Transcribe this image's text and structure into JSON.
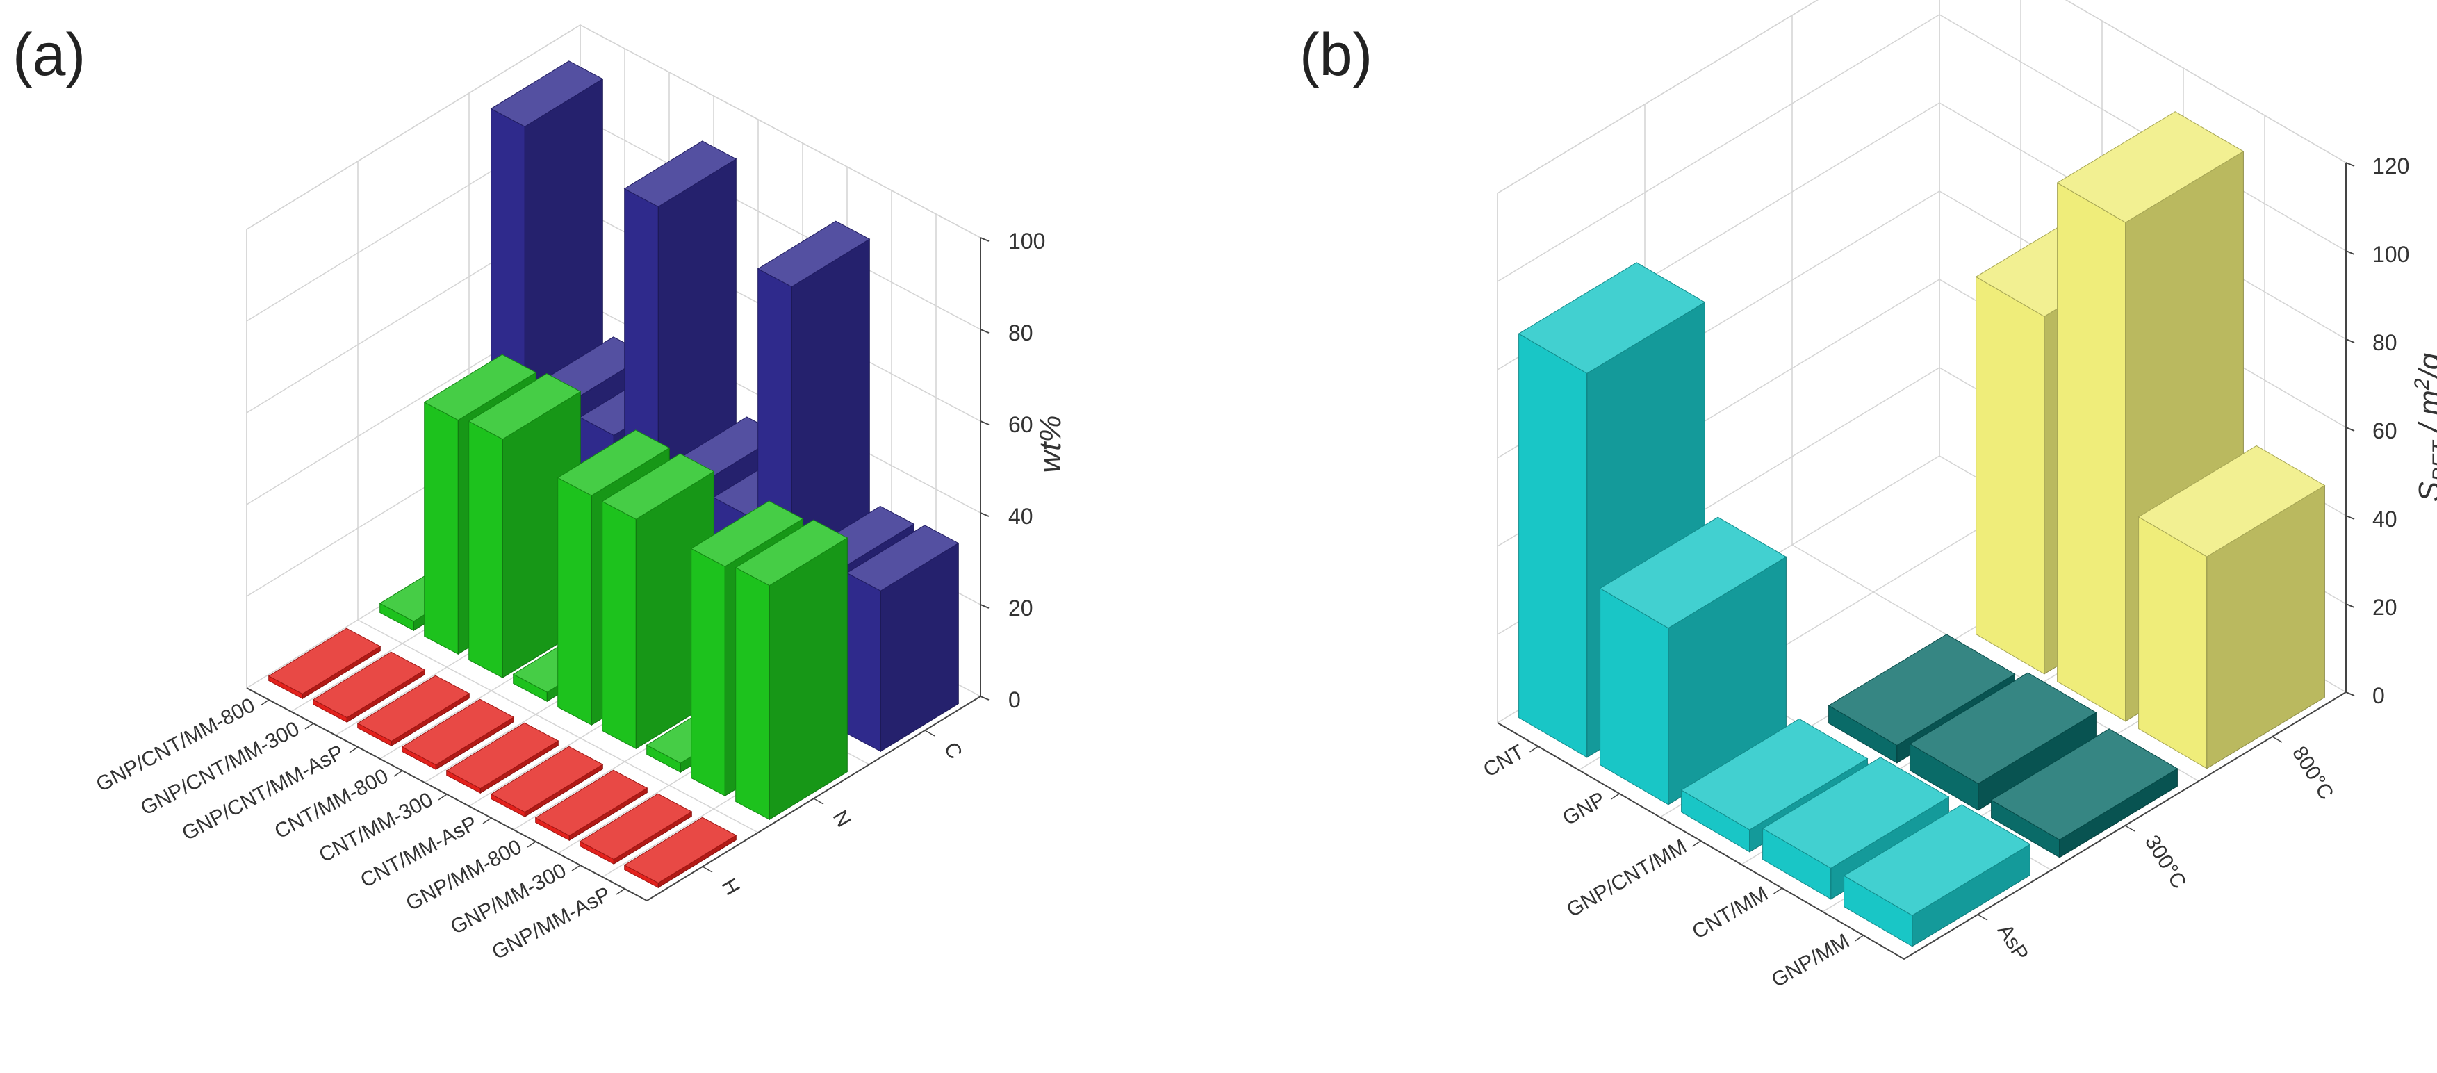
{
  "colors": {
    "H": "#e3211c",
    "N": "#1dc21d",
    "C": "#2f2a8c",
    "AsP": "#19c6c6",
    "300": "#0a6b68",
    "800": "#efed7a"
  },
  "chart_data": [
    {
      "panel": "(a)",
      "type": "bar3d",
      "zlabel": "wt%",
      "zlim": [
        0,
        100
      ],
      "zticks": [
        "0",
        "20",
        "40",
        "60",
        "80",
        "100"
      ],
      "samples": [
        "GNP/CNT/MM-800",
        "GNP/CNT/MM-300",
        "GNP/CNT/MM-AsP",
        "CNT/MM-800",
        "CNT/MM-300",
        "CNT/MM-AsP",
        "GNP/MM-800",
        "GNP/MM-300",
        "GNP/MM-AsP"
      ],
      "elements": [
        "H",
        "N",
        "C"
      ],
      "series": [
        {
          "name": "H",
          "values": [
            1,
            1,
            1,
            1,
            1,
            1,
            1,
            1,
            1
          ]
        },
        {
          "name": "N",
          "values": [
            2,
            51,
            52,
            2,
            50,
            50,
            2,
            50,
            51
          ]
        },
        {
          "name": "C",
          "values": [
            95,
            40,
            38,
            93,
            38,
            36,
            91,
            34,
            35
          ]
        }
      ]
    },
    {
      "panel": "(b)",
      "type": "bar3d",
      "zlabel_main": "S",
      "zlabel_sub": "BET",
      "zlabel_rest": " / m",
      "zlabel_sup": "2",
      "zlabel_end": "/g",
      "zlim": [
        0,
        120
      ],
      "zticks": [
        "0",
        "20",
        "40",
        "60",
        "80",
        "100",
        "120"
      ],
      "materials": [
        "CNT",
        "GNP",
        "GNP/CNT/MM",
        "CNT/MM",
        "GNP/MM"
      ],
      "treatments": [
        "AsP",
        "300°C",
        "800°C"
      ],
      "series": [
        {
          "name": "AsP",
          "values": [
            87,
            40,
            5,
            7,
            7
          ]
        },
        {
          "name": "300°C",
          "values": [
            0,
            0,
            4,
            6,
            4
          ]
        },
        {
          "name": "800°C",
          "values": [
            0,
            0,
            81,
            113,
            48
          ]
        }
      ]
    }
  ]
}
